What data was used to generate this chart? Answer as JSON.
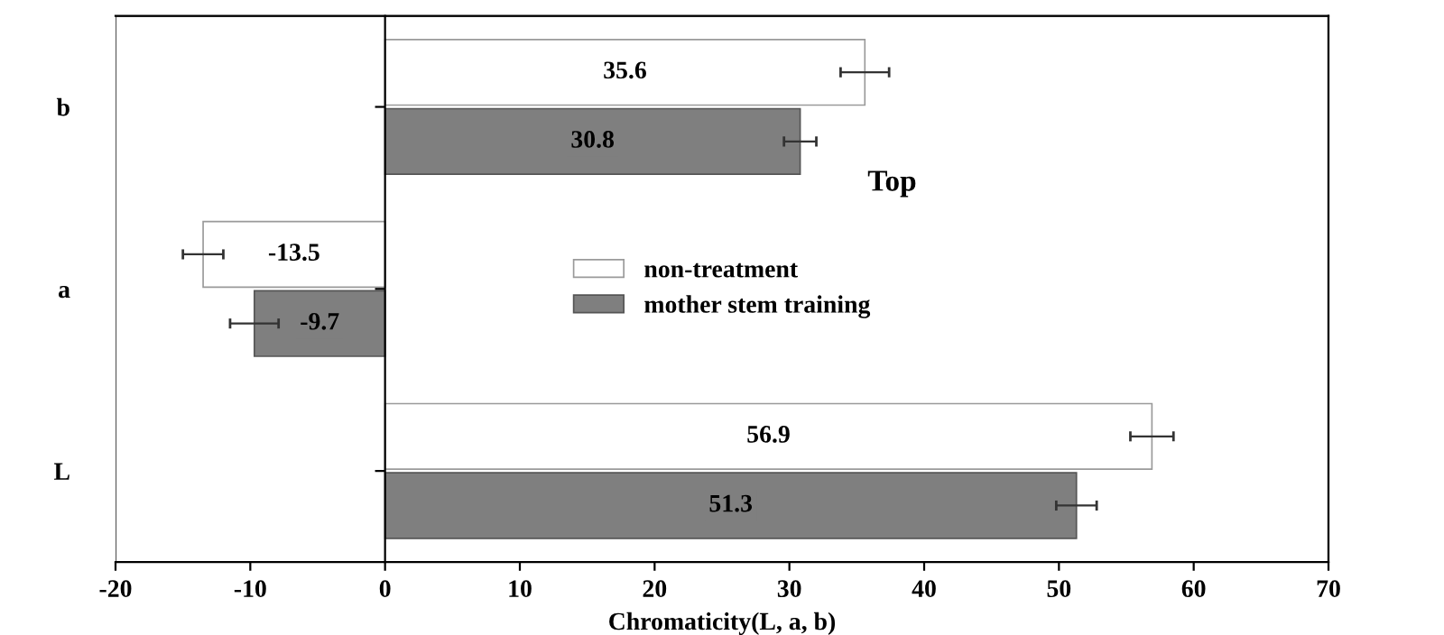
{
  "chart_data": {
    "type": "bar",
    "orientation": "horizontal",
    "xlabel": "Chromaticity(L, a, b)",
    "categories": [
      "b",
      "a",
      "L"
    ],
    "series": [
      {
        "name": "non-treatment",
        "color": "#ffffff",
        "values": [
          35.6,
          -13.5,
          56.9
        ],
        "errors": [
          1.8,
          1.5,
          1.6
        ]
      },
      {
        "name": "mother stem training",
        "color": "#7f7f7f",
        "values": [
          30.8,
          -9.7,
          51.3
        ],
        "errors": [
          1.2,
          1.8,
          1.5
        ]
      }
    ],
    "xlim": [
      -20,
      70
    ],
    "xticks": [
      -20,
      -10,
      0,
      10,
      20,
      30,
      40,
      50,
      60,
      70
    ],
    "data_labels": true,
    "legend": "center",
    "annotations": [
      "Top"
    ]
  }
}
